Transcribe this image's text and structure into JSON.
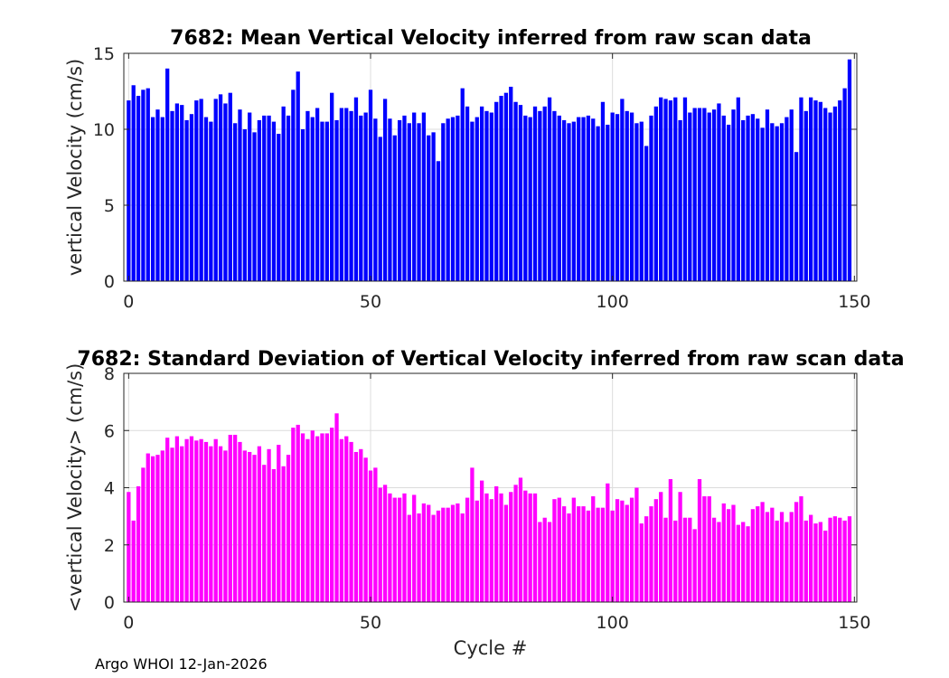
{
  "footer": "Argo WHOI 12-Jan-2026",
  "chart_data": [
    {
      "type": "bar",
      "title": "7682: Mean Vertical Velocity inferred from raw scan data",
      "xlabel": "",
      "ylabel": "vertical Velocity (cm/s)",
      "xlim": [
        -1,
        150.5
      ],
      "ylim": [
        0,
        15
      ],
      "xticks": [
        0,
        50,
        100,
        150
      ],
      "yticks": [
        0,
        5,
        10,
        15
      ],
      "grid": true,
      "color": "#0000ff",
      "x_start": 0,
      "values": [
        11.9,
        12.9,
        12.2,
        12.6,
        12.7,
        10.8,
        11.3,
        10.8,
        14.0,
        11.2,
        11.7,
        11.6,
        10.6,
        11.0,
        11.9,
        12.0,
        10.8,
        10.5,
        12.0,
        12.3,
        11.7,
        12.4,
        10.4,
        11.3,
        10.0,
        11.1,
        9.8,
        10.6,
        10.9,
        10.9,
        10.5,
        9.7,
        11.5,
        10.9,
        12.6,
        13.8,
        10.0,
        11.2,
        10.8,
        11.4,
        10.5,
        10.5,
        12.4,
        10.6,
        11.4,
        11.4,
        11.2,
        12.1,
        10.9,
        11.1,
        12.6,
        10.7,
        9.5,
        12.0,
        10.7,
        9.6,
        10.6,
        10.9,
        10.4,
        11.1,
        10.4,
        11.1,
        9.6,
        9.8,
        7.9,
        10.4,
        10.7,
        10.8,
        10.9,
        12.7,
        11.5,
        10.5,
        10.8,
        11.5,
        11.2,
        11.1,
        11.8,
        12.2,
        12.4,
        12.8,
        11.8,
        11.6,
        10.9,
        10.8,
        11.5,
        11.2,
        11.5,
        12.1,
        11.2,
        10.9,
        10.6,
        10.4,
        10.5,
        10.8,
        10.8,
        10.9,
        10.7,
        10.2,
        11.8,
        10.3,
        11.1,
        11.0,
        12.0,
        11.2,
        11.1,
        10.4,
        10.5,
        8.9,
        10.9,
        11.5,
        12.1,
        12.0,
        11.9,
        12.1,
        10.6,
        12.1,
        11.1,
        11.4,
        11.4,
        11.4,
        11.1,
        11.3,
        11.7,
        10.9,
        10.3,
        11.3,
        12.1,
        10.6,
        10.9,
        11.0,
        10.7,
        10.1,
        11.3,
        10.4,
        10.2,
        10.4,
        10.8,
        11.3,
        8.5,
        12.1,
        11.2,
        12.1,
        11.9,
        11.8,
        11.4,
        11.1,
        11.5,
        11.9,
        12.7,
        14.6
      ]
    },
    {
      "type": "bar",
      "title": "7682: Standard Deviation of Vertical Velocity inferred from raw scan data",
      "xlabel": "Cycle #",
      "ylabel": "<vertical Velocity> (cm/s)",
      "xlim": [
        -1,
        150.5
      ],
      "ylim": [
        0,
        8
      ],
      "xticks": [
        0,
        50,
        100,
        150
      ],
      "yticks": [
        0,
        2,
        4,
        6,
        8
      ],
      "grid": true,
      "color": "#ff00ff",
      "x_start": 0,
      "values": [
        3.85,
        2.85,
        4.05,
        4.7,
        5.2,
        5.1,
        5.15,
        5.3,
        5.75,
        5.4,
        5.8,
        5.45,
        5.7,
        5.8,
        5.65,
        5.7,
        5.6,
        5.45,
        5.7,
        5.45,
        5.3,
        5.85,
        5.85,
        5.6,
        5.3,
        5.25,
        5.15,
        5.45,
        4.8,
        5.35,
        4.65,
        5.5,
        4.75,
        5.15,
        6.1,
        6.2,
        5.9,
        5.7,
        6.0,
        5.8,
        5.9,
        5.9,
        6.1,
        6.6,
        5.7,
        5.8,
        5.6,
        5.25,
        5.35,
        5.05,
        4.6,
        4.7,
        4.0,
        4.1,
        3.8,
        3.65,
        3.65,
        3.8,
        3.05,
        3.75,
        3.1,
        3.45,
        3.4,
        3.05,
        3.2,
        3.3,
        3.3,
        3.4,
        3.45,
        3.1,
        3.65,
        4.7,
        3.55,
        4.25,
        3.8,
        3.6,
        4.05,
        3.8,
        3.4,
        3.85,
        4.1,
        4.35,
        3.9,
        3.8,
        3.8,
        2.8,
        2.95,
        2.8,
        3.6,
        3.65,
        3.35,
        3.1,
        3.65,
        3.35,
        3.35,
        3.2,
        3.7,
        3.3,
        3.3,
        4.15,
        3.2,
        3.6,
        3.55,
        3.4,
        3.65,
        4.0,
        2.75,
        3.0,
        3.35,
        3.6,
        3.85,
        2.95,
        4.3,
        2.85,
        3.85,
        2.95,
        2.95,
        2.55,
        4.3,
        3.7,
        3.7,
        2.95,
        2.8,
        3.45,
        3.25,
        3.4,
        2.7,
        2.8,
        2.65,
        3.25,
        3.35,
        3.5,
        3.15,
        3.3,
        2.85,
        3.15,
        2.8,
        3.15,
        3.5,
        3.7,
        2.85,
        3.05,
        2.75,
        2.8,
        2.5,
        2.95,
        3.0,
        2.95,
        2.85,
        3.0
      ]
    }
  ]
}
